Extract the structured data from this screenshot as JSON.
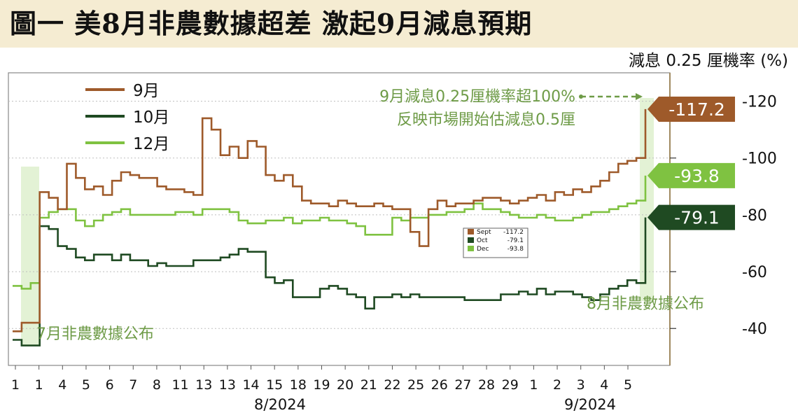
{
  "title": "圖一 美8月非農數據超差 激起9月減息預期",
  "unit_label": "減息 0.25 厘機率 (%)",
  "colors": {
    "sep": "#9e5a2a",
    "oct": "#1f4a22",
    "dec": "#7fc241",
    "annot": "#6e9b47",
    "panel": "#f5ecd2"
  },
  "chart_data": {
    "type": "line",
    "title": "圖一 美8月非農數據超差 激起9月減息預期",
    "ylabel": "減息 0.25 厘機率 (%)",
    "ylim": [
      -27,
      -130
    ],
    "y_ticks": [
      -120,
      -100,
      -80,
      -60,
      -40
    ],
    "y_tick_labels": [
      "-120",
      "-100",
      "-80",
      "-60",
      "-40"
    ],
    "x_tick_labels": [
      "1",
      "1",
      "4",
      "5",
      "6",
      "7",
      "8",
      "11",
      "13",
      "13",
      "14",
      "15",
      "18",
      "19",
      "20",
      "21",
      "22",
      "25",
      "26",
      "27",
      "28",
      "29",
      "1",
      "2",
      "3",
      "4",
      "5"
    ],
    "x_group_labels": [
      "8/2024",
      "9/2024"
    ],
    "legend_position": "top-left",
    "series": [
      {
        "name": "9月",
        "key": "sep",
        "end_label": "-117.2",
        "values": [
          -39,
          -42,
          -42,
          -88,
          -86,
          -82,
          -98,
          -93,
          -89,
          -90,
          -87,
          -92,
          -95,
          -94,
          -93,
          -93,
          -90,
          -89,
          -89,
          -88,
          -87,
          -114,
          -110,
          -101,
          -104,
          -100,
          -106,
          -104,
          -94,
          -92,
          -94,
          -90,
          -85,
          -84,
          -84,
          -83,
          -85,
          -84,
          -83,
          -83,
          -84,
          -83,
          -82,
          -82,
          -74,
          -69,
          -82,
          -85,
          -83,
          -84,
          -84,
          -85,
          -86,
          -86,
          -85,
          -84,
          -85,
          -86,
          -87,
          -85,
          -88,
          -87,
          -89,
          -88,
          -90,
          -92,
          -95,
          -98,
          -99,
          -100,
          -117.2
        ]
      },
      {
        "name": "10月",
        "key": "oct",
        "end_label": "-79.1",
        "values": [
          -36,
          -34,
          -34,
          -76,
          -75,
          -69,
          -68,
          -65,
          -64,
          -66,
          -66,
          -64,
          -66,
          -64,
          -64,
          -62,
          -63,
          -62,
          -62,
          -62,
          -64,
          -64,
          -64,
          -65,
          -66,
          -68,
          -67,
          -67,
          -58,
          -56,
          -57,
          -51,
          -51,
          -51,
          -54,
          -55,
          -54,
          -52,
          -51,
          -47,
          -51,
          -51,
          -52,
          -51,
          -52,
          -51,
          -51,
          -51,
          -51,
          -51,
          -50,
          -50,
          -50,
          -50,
          -52,
          -52,
          -53,
          -52,
          -54,
          -52,
          -53,
          -53,
          -52,
          -51,
          -50,
          -52,
          -54,
          -55,
          -57,
          -56,
          -79.1
        ]
      },
      {
        "name": "12月",
        "key": "dec",
        "end_label": "-93.8",
        "values": [
          -55,
          -54,
          -56,
          -79,
          -81,
          -82,
          -82,
          -78,
          -76,
          -78,
          -80,
          -81,
          -82,
          -80,
          -80,
          -80,
          -80,
          -80,
          -81,
          -81,
          -80,
          -82,
          -82,
          -82,
          -81,
          -78,
          -77,
          -77,
          -78,
          -78,
          -79,
          -77,
          -78,
          -78,
          -79,
          -78,
          -78,
          -77,
          -76,
          -73,
          -73,
          -73,
          -79,
          -78,
          -79,
          -79,
          -80,
          -80,
          -81,
          -81,
          -82,
          -84,
          -82,
          -82,
          -81,
          -80,
          -79,
          -79,
          -80,
          -79,
          -78,
          -78,
          -79,
          -80,
          -81,
          -81,
          -82,
          -83,
          -84,
          -85,
          -93.8
        ]
      }
    ],
    "inset_legend": [
      {
        "label": "Sept",
        "value": "-117.2",
        "key": "sep"
      },
      {
        "label": "Oct",
        "value": "-79.1",
        "key": "oct"
      },
      {
        "label": "Dec",
        "value": "-93.8",
        "key": "dec"
      }
    ],
    "annotations": {
      "july_nfp": "7月非農數據公布",
      "aug_nfp": "8月非農數據公布",
      "callout_line1": "9月減息0.25厘機率超100%",
      "callout_line2": "反映市場開始估減息0.5厘"
    }
  }
}
